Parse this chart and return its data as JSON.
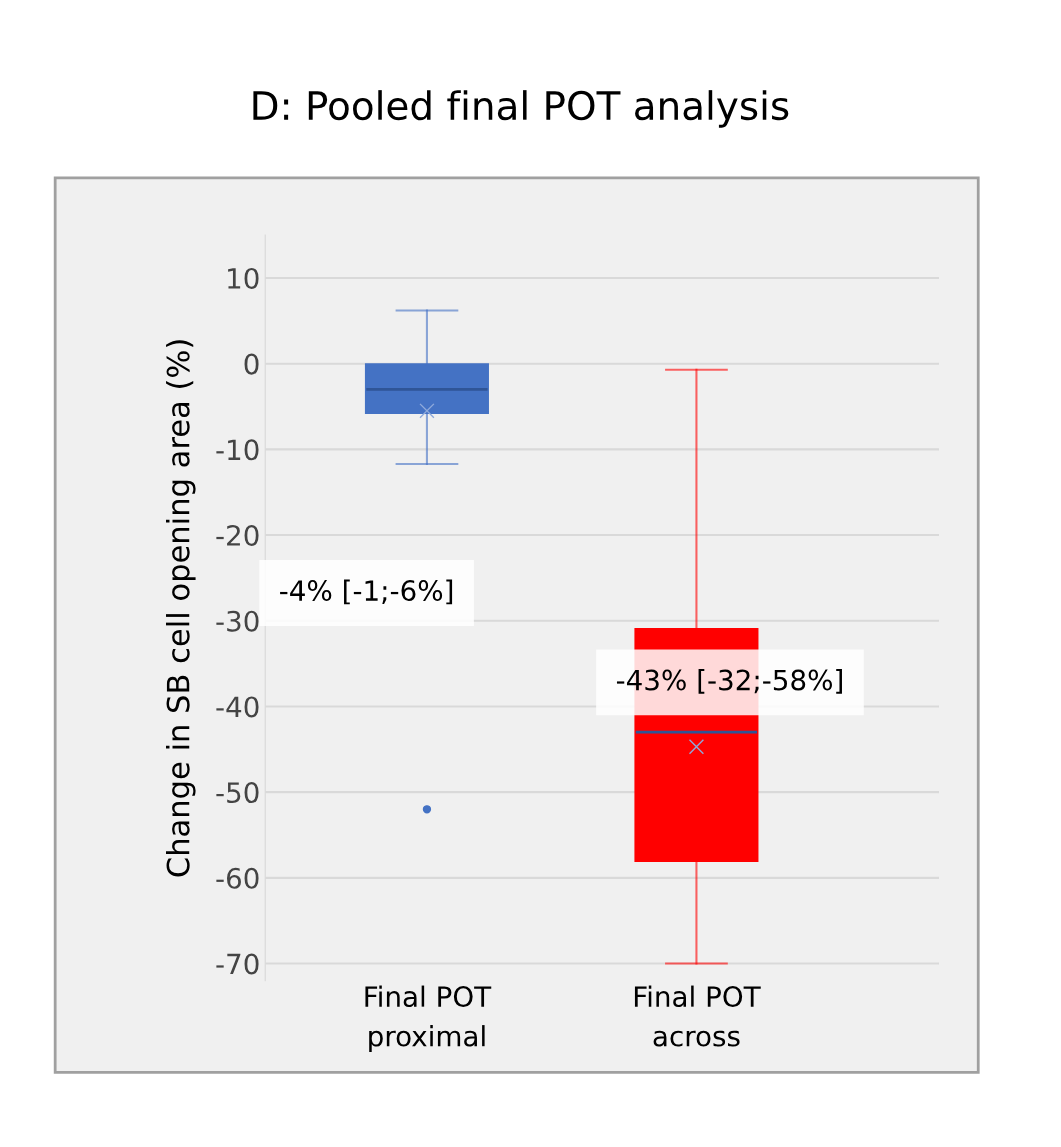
{
  "chart_data": {
    "type": "box",
    "title": "D: Pooled final POT analysis",
    "ylabel": "Change in SB cell opening area (%)",
    "categories": [
      "Final POT\nproximal",
      "Final POT\nacross"
    ],
    "boxes": [
      {
        "low": -11.7,
        "q1": -5.7,
        "median": -3,
        "q3": -0.1,
        "high": 6.2,
        "mean": -5.5,
        "outliers": [
          -52
        ]
      },
      {
        "low": -70,
        "q1": -58,
        "median": -43,
        "q3": -31,
        "high": -0.7,
        "mean": -44.7
      }
    ],
    "colors": [
      "#4472c4",
      "#ff0000"
    ],
    "ylim": [
      -72,
      15
    ],
    "yticks": [
      10,
      0,
      -10,
      -20,
      -30,
      -40,
      -50,
      -60,
      -70
    ],
    "grid": "y",
    "annotations": [
      "-4% [-1;-6%]",
      "-43% [-32;-58%]"
    ]
  }
}
